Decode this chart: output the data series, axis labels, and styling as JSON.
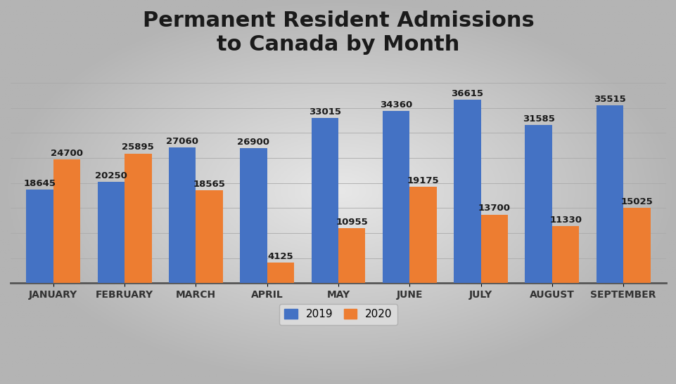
{
  "title": "Permanent Resident Admissions\nto Canada by Month",
  "months": [
    "JANUARY",
    "FEBRUARY",
    "MARCH",
    "APRIL",
    "MAY",
    "JUNE",
    "JULY",
    "AUGUST",
    "SEPTEMBER"
  ],
  "values_2019": [
    18645,
    20250,
    27060,
    26900,
    33015,
    34360,
    36615,
    31585,
    35515
  ],
  "values_2020": [
    24700,
    25895,
    18565,
    4125,
    10955,
    19175,
    13700,
    11330,
    15025
  ],
  "color_2019": "#4472C4",
  "color_2020": "#ED7D31",
  "title_fontsize": 22,
  "tick_fontsize": 10,
  "legend_fontsize": 11,
  "bar_label_fontsize": 9.5,
  "ylim": [
    0,
    43000
  ],
  "legend_labels": [
    "2019",
    "2020"
  ]
}
